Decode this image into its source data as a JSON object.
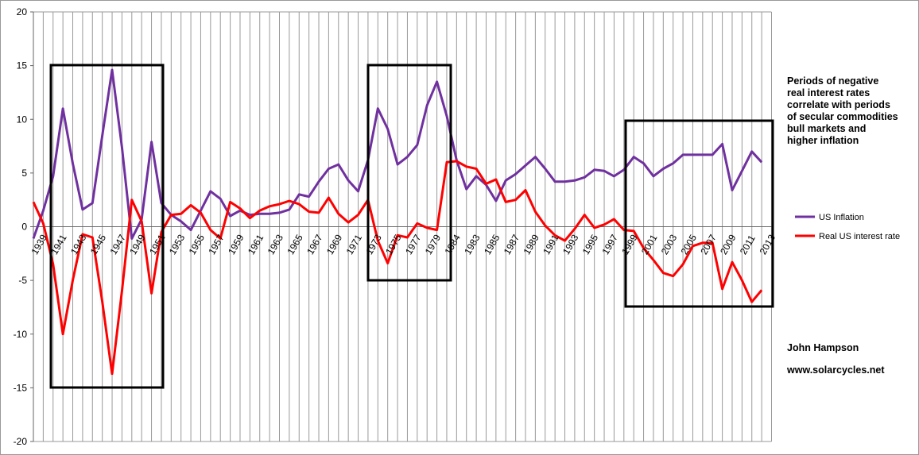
{
  "chart_data": {
    "type": "line",
    "categories": [
      "1939",
      null,
      "1941",
      null,
      "1943",
      null,
      "1945",
      null,
      "1947",
      null,
      "1949",
      null,
      "1951",
      null,
      "1953",
      null,
      "1955",
      null,
      "1957",
      null,
      "1959",
      null,
      "1961",
      null,
      "1963",
      null,
      "1965",
      null,
      "1967",
      null,
      "1969",
      null,
      "1971",
      null,
      "1973",
      null,
      "1975",
      null,
      "1977",
      null,
      "1979",
      null,
      "1984",
      null,
      "1983",
      null,
      "1985",
      null,
      "1987",
      null,
      "1989",
      null,
      "1991",
      null,
      "1993",
      null,
      "1995",
      null,
      "1997",
      null,
      "1999",
      null,
      "2001",
      null,
      "2003",
      null,
      "2005",
      null,
      "2007",
      null,
      "2009",
      null,
      "2011",
      null,
      "2013"
    ],
    "series": [
      {
        "name": "US Inflation",
        "color": "#7030a0",
        "values": [
          -1.1,
          1.5,
          4.7,
          11.0,
          5.9,
          1.6,
          2.2,
          8.5,
          14.6,
          7.4,
          -1.1,
          0.7,
          7.9,
          2.2,
          1.1,
          0.5,
          -0.3,
          1.5,
          3.3,
          2.6,
          1.0,
          1.5,
          1.1,
          1.2,
          1.2,
          1.3,
          1.6,
          3.0,
          2.8,
          4.2,
          5.4,
          5.8,
          4.3,
          3.3,
          6.2,
          11.0,
          9.1,
          5.8,
          6.5,
          7.6,
          11.3,
          13.5,
          10.3,
          6.2,
          3.5,
          4.7,
          3.9,
          2.4,
          4.3,
          4.9,
          5.7,
          6.5,
          5.4,
          4.2,
          4.2,
          4.3,
          4.6,
          5.3,
          5.2,
          4.7,
          5.3,
          6.5,
          5.9,
          4.7,
          5.4,
          5.9,
          6.7,
          6.7,
          6.7,
          6.7,
          7.7,
          3.4,
          5.2,
          7.0,
          6.0
        ]
      },
      {
        "name": "Real US interest rate",
        "color": "#ff0000",
        "values": [
          2.3,
          0.3,
          -3.5,
          -10.0,
          -5.0,
          -0.7,
          -1.0,
          -7.0,
          -13.7,
          -6.0,
          2.5,
          0.5,
          -6.2,
          -0.5,
          1.1,
          1.2,
          2.0,
          1.3,
          -0.3,
          -1.1,
          2.3,
          1.7,
          0.8,
          1.5,
          1.9,
          2.1,
          2.4,
          2.1,
          1.4,
          1.3,
          2.7,
          1.2,
          0.4,
          1.1,
          2.5,
          -1.3,
          -3.4,
          -0.8,
          -1.0,
          0.3,
          -0.1,
          -0.3,
          6.0,
          6.1,
          5.6,
          5.4,
          4.0,
          4.4,
          2.3,
          2.5,
          3.4,
          1.4,
          0.1,
          -0.8,
          -1.3,
          -0.2,
          1.1,
          -0.1,
          0.2,
          0.7,
          -0.3,
          -0.4,
          -2.0,
          -3.1,
          -4.3,
          -4.6,
          -3.5,
          -1.8,
          -1.5,
          -1.5,
          -5.8,
          -3.3,
          -5.0,
          -7.0,
          -5.9
        ]
      }
    ],
    "ylim": [
      -20,
      20
    ],
    "yticks": [
      -20,
      -15,
      -10,
      -5,
      0,
      5,
      10,
      15,
      20
    ],
    "grid": true,
    "annotations": [
      "Periods of negative",
      "real interest rates",
      "correlate with periods",
      "of secular commodities",
      "bull markets and",
      "higher inflation"
    ],
    "author": "John Hampson",
    "website": "www.solarcycles.net"
  }
}
